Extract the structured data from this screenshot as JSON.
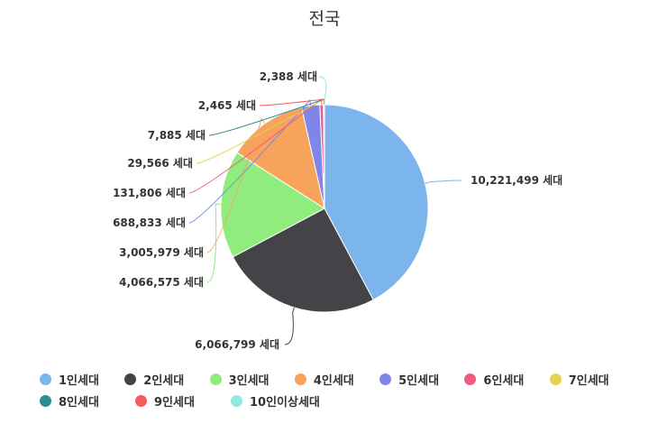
{
  "chart_data": {
    "type": "pie",
    "title": "전국",
    "unit": "세대",
    "legend_position": "bottom",
    "slices": [
      {
        "name": "1인세대",
        "value": 10221499,
        "label": "10,221,499 세대",
        "color": "#7cb5ec"
      },
      {
        "name": "2인세대",
        "value": 6066799,
        "label": "6,066,799 세대",
        "color": "#434348"
      },
      {
        "name": "3인세대",
        "value": 4066575,
        "label": "4,066,575 세대",
        "color": "#90ed7d"
      },
      {
        "name": "4인세대",
        "value": 3005979,
        "label": "3,005,979 세대",
        "color": "#f7a35c"
      },
      {
        "name": "5인세대",
        "value": 688833,
        "label": "688,833 세대",
        "color": "#8085e9"
      },
      {
        "name": "6인세대",
        "value": 131806,
        "label": "131,806 세대",
        "color": "#f15c80"
      },
      {
        "name": "7인세대",
        "value": 29566,
        "label": "29,566 세대",
        "color": "#e4d354"
      },
      {
        "name": "8인세대",
        "value": 7885,
        "label": "7,885 세대",
        "color": "#2b908f"
      },
      {
        "name": "9인세대",
        "value": 2465,
        "label": "2,465 세대",
        "color": "#f45b5b"
      },
      {
        "name": "10인이상세대",
        "value": 2388,
        "label": "2,388 세대",
        "color": "#91e8e1"
      }
    ]
  }
}
